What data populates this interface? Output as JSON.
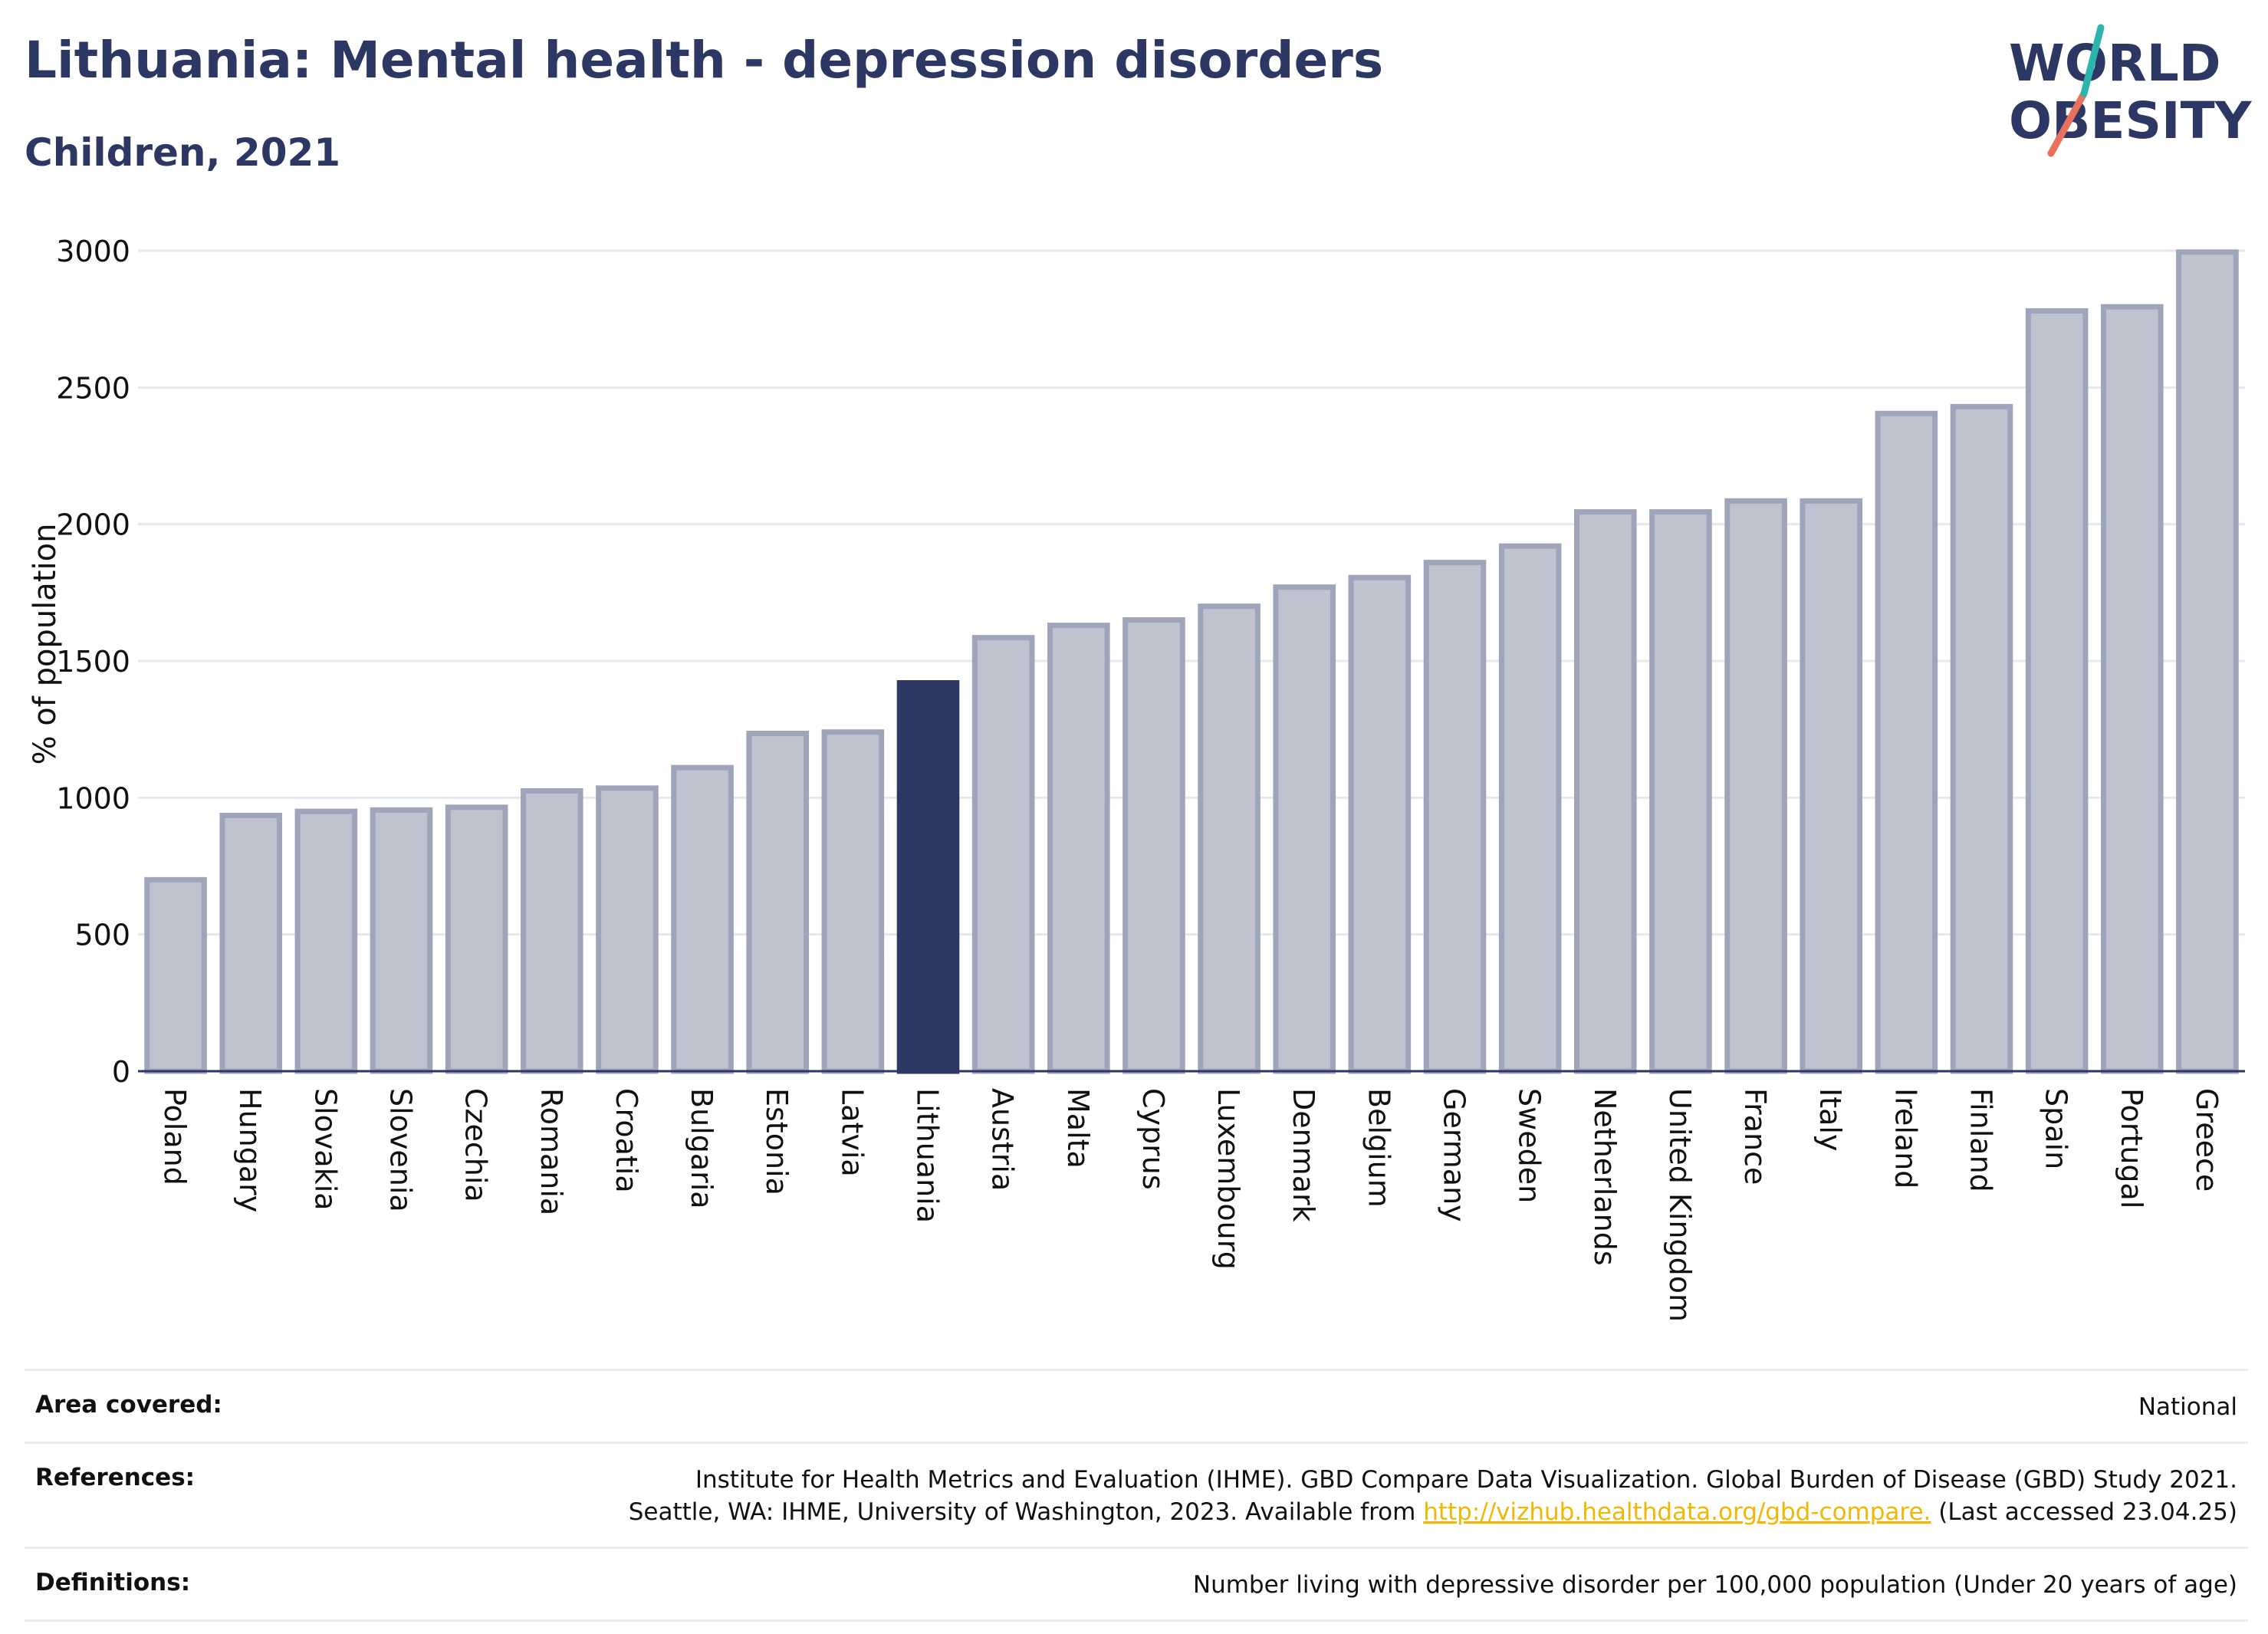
{
  "header": {
    "title": "Lithuania: Mental health - depression disorders",
    "subtitle": "Children, 2021",
    "logo_line1": "WORLD",
    "logo_line2": "OBESITY"
  },
  "colors": {
    "title": "#2c3763",
    "highlight_bar": "#2c3763",
    "bar_fill": "#bfc3d0",
    "bar_stroke": "#9ea4ba",
    "grid": "#e6e8ee",
    "link": "#f2b705",
    "logo_teal": "#2bb5ad",
    "logo_coral": "#e8715d"
  },
  "chart_data": {
    "type": "bar",
    "title": "",
    "ylabel": "% of population",
    "xlabel": "",
    "ylim": [
      0,
      3000
    ],
    "yticks": [
      0,
      500,
      1000,
      1500,
      2000,
      2500,
      3000
    ],
    "grid": true,
    "highlight": "Lithuania",
    "categories": [
      "Poland",
      "Hungary",
      "Slovakia",
      "Slovenia",
      "Czechia",
      "Romania",
      "Croatia",
      "Bulgaria",
      "Estonia",
      "Latvia",
      "Lithuania",
      "Austria",
      "Malta",
      "Cyprus",
      "Luxembourg",
      "Denmark",
      "Belgium",
      "Germany",
      "Sweden",
      "Netherlands",
      "United Kingdom",
      "France",
      "Italy",
      "Ireland",
      "Finland",
      "Spain",
      "Portugal",
      "Greece"
    ],
    "values": [
      700,
      935,
      950,
      955,
      965,
      1025,
      1035,
      1110,
      1235,
      1240,
      1420,
      1585,
      1630,
      1650,
      1700,
      1770,
      1805,
      1860,
      1920,
      2045,
      2045,
      2085,
      2085,
      2405,
      2430,
      2780,
      2795,
      2995
    ]
  },
  "info": {
    "area_label": "Area covered:",
    "area_value": "National",
    "references_label": "References:",
    "references_line1": "Institute for Health Metrics and Evaluation (IHME). GBD Compare Data Visualization. Global Burden of Disease (GBD) Study 2021.",
    "references_line2_pre": "Seattle, WA: IHME, University of Washington, 2023. Available from ",
    "references_link": "http://vizhub.healthdata.org/gbd-compare.",
    "references_line2_post": " (Last accessed 23.04.25)",
    "definitions_label": "Definitions:",
    "definitions_value": "Number living with depressive disorder per 100,000 population (Under 20 years of age)"
  }
}
